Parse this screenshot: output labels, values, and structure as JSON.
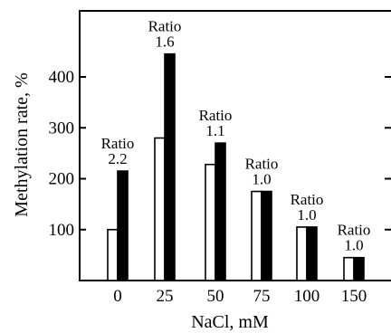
{
  "chart_data": {
    "type": "bar",
    "xlabel": "NaCl, mM",
    "ylabel": "Methylation rate, %",
    "categories": [
      "0",
      "25",
      "50",
      "75",
      "100",
      "150"
    ],
    "series": [
      {
        "values": [
          100,
          280,
          228,
          175,
          105,
          45
        ],
        "fill": "#ffffff"
      },
      {
        "values": [
          215,
          445,
          270,
          175,
          105,
          45
        ],
        "fill": "#000000"
      }
    ],
    "annotations": [
      {
        "label": "Ratio",
        "value": "2.2"
      },
      {
        "label": "Ratio",
        "value": "1.6"
      },
      {
        "label": "Ratio",
        "value": "1.1"
      },
      {
        "label": "Ratio",
        "value": "1.0"
      },
      {
        "label": "Ratio",
        "value": "1.0"
      },
      {
        "label": "Ratio",
        "value": "1.0"
      }
    ],
    "yticks": [
      100,
      200,
      300,
      400
    ],
    "ylim": [
      0,
      500
    ],
    "grid": false,
    "legend": "none"
  }
}
